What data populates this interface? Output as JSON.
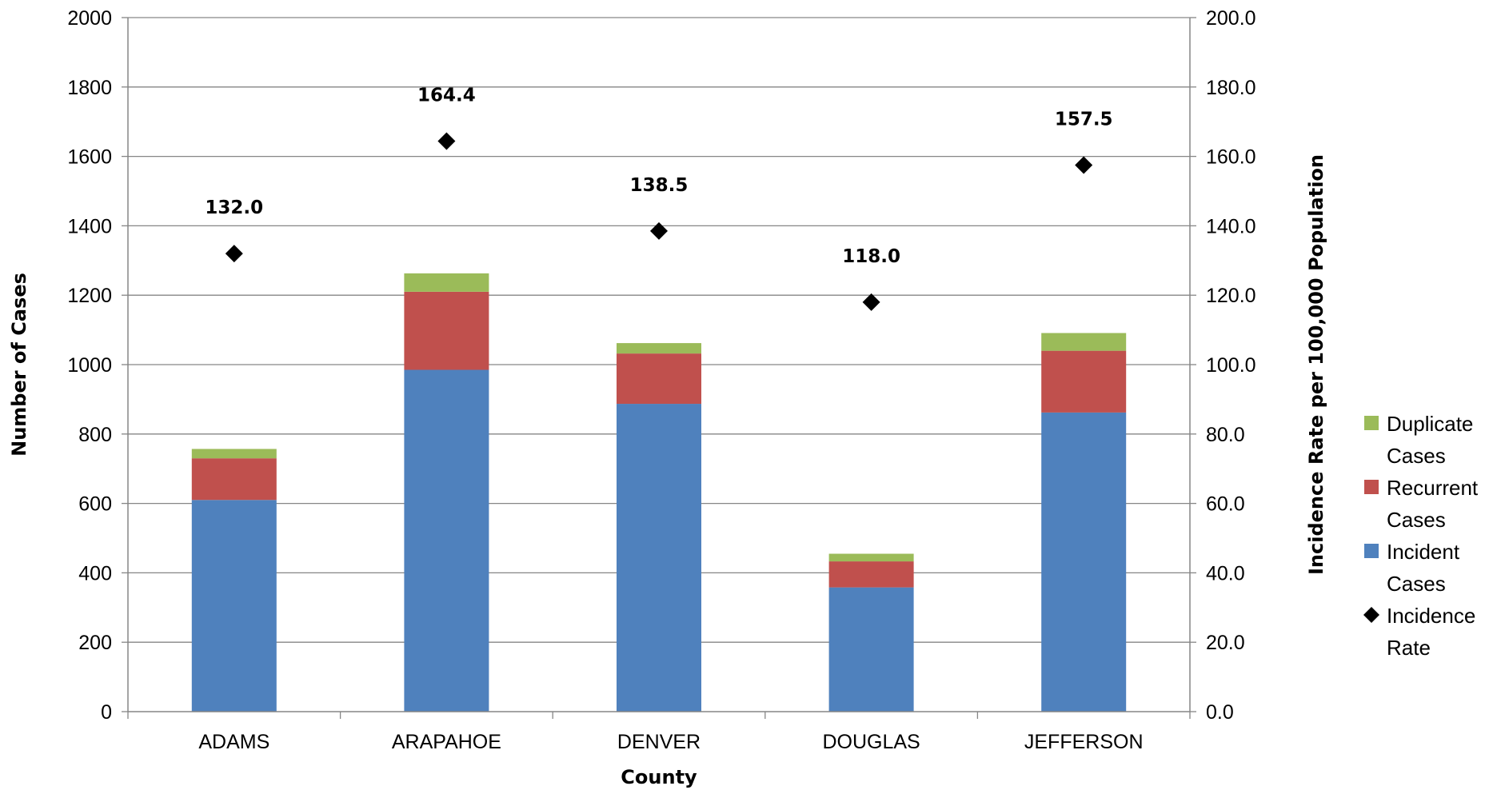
{
  "chart_data": {
    "type": "bar",
    "stacked": true,
    "categories": [
      "ADAMS",
      "ARAPAHOE",
      "DENVER",
      "DOUGLAS",
      "JEFFERSON"
    ],
    "series": [
      {
        "name": "Incident Cases",
        "axis": "left",
        "type": "bar",
        "color": "#4F81BD",
        "values": [
          610,
          985,
          887,
          358,
          862
        ]
      },
      {
        "name": "Recurrent Cases",
        "axis": "left",
        "type": "bar",
        "color": "#C0504D",
        "values": [
          120,
          225,
          145,
          75,
          178
        ]
      },
      {
        "name": "Duplicate Cases",
        "axis": "left",
        "type": "bar",
        "color": "#9BBB59",
        "values": [
          27,
          53,
          30,
          22,
          51
        ]
      },
      {
        "name": "Incidence Rate",
        "axis": "right",
        "type": "scatter",
        "marker": "diamond",
        "color": "#000000",
        "values": [
          132.0,
          164.4,
          138.5,
          118.0,
          157.5
        ],
        "labels": [
          "132.0",
          "164.4",
          "138.5",
          "118.0",
          "157.5"
        ]
      }
    ],
    "xlabel": "County",
    "ylabel": "Number of Cases",
    "y2label": "Incidence Rate per 100,000 Population",
    "ylim": [
      0,
      2000
    ],
    "y2lim": [
      0,
      200
    ],
    "yticks": [
      "0",
      "200",
      "400",
      "600",
      "800",
      "1000",
      "1200",
      "1400",
      "1600",
      "1800",
      "2000"
    ],
    "y2ticks": [
      "0.0",
      "20.0",
      "40.0",
      "60.0",
      "80.0",
      "100.0",
      "120.0",
      "140.0",
      "160.0",
      "180.0",
      "200.0"
    ],
    "grid": true,
    "legend": {
      "position": "right",
      "entries": [
        {
          "lines": [
            "Duplicate",
            "Cases"
          ],
          "color": "#9BBB59",
          "marker": "square"
        },
        {
          "lines": [
            "Recurrent",
            "Cases"
          ],
          "color": "#C0504D",
          "marker": "square"
        },
        {
          "lines": [
            "Incident",
            "Cases"
          ],
          "color": "#4F81BD",
          "marker": "square"
        },
        {
          "lines": [
            "Incidence",
            "Rate"
          ],
          "color": "#000000",
          "marker": "diamond"
        }
      ]
    }
  }
}
